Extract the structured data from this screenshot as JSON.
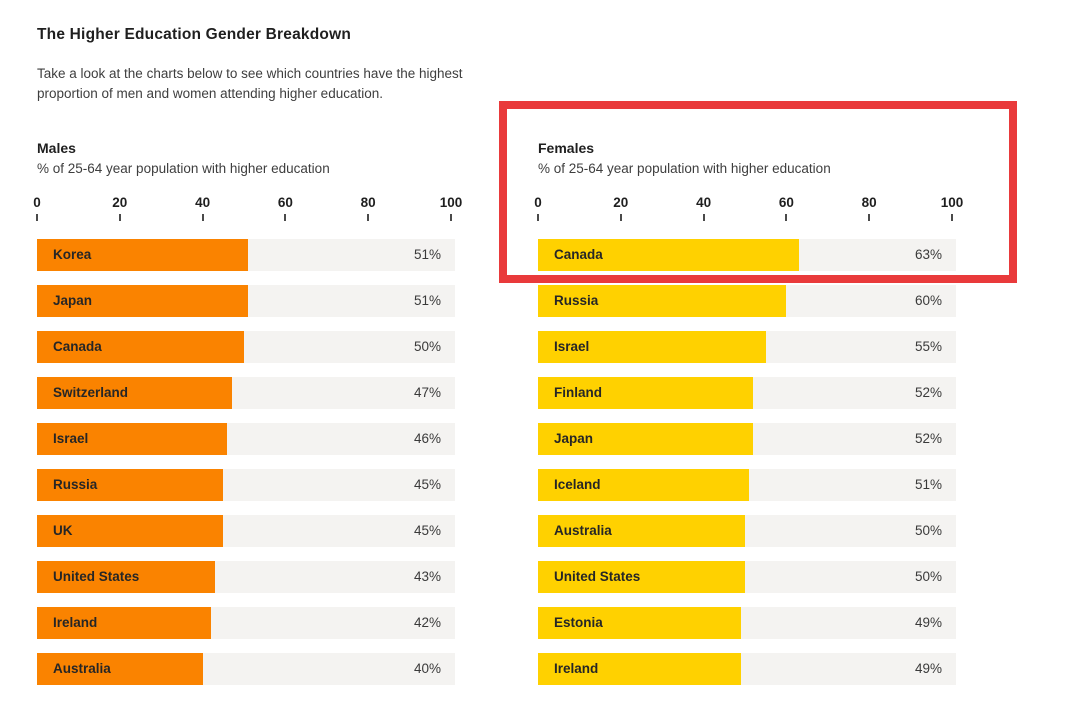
{
  "page": {
    "title": "The Higher Education Gender Breakdown",
    "subtitle_line1": "Take a look at the charts below to see which countries have the highest",
    "subtitle_line2": "proportion of men and women attending higher education."
  },
  "colors": {
    "male_bar": "#fa8300",
    "female_bar": "#ffd100",
    "bar_track": "#f4f3f1",
    "highlight_border": "#e93a3b",
    "heading_text": "#1f1f1f",
    "body_text": "#3e3e3e"
  },
  "chart_data": [
    {
      "id": "males",
      "type": "bar",
      "orientation": "horizontal",
      "title": "Males",
      "subtitle": "% of 25-64 year population with higher education",
      "xlim": [
        0,
        100
      ],
      "axis_ticks": [
        0,
        20,
        40,
        60,
        80,
        100
      ],
      "bar_color": "#fa8300",
      "categories": [
        "Korea",
        "Japan",
        "Canada",
        "Switzerland",
        "Israel",
        "Russia",
        "UK",
        "United States",
        "Ireland",
        "Australia"
      ],
      "values": [
        51,
        51,
        50,
        47,
        46,
        45,
        45,
        43,
        42,
        40
      ],
      "value_labels": [
        "51%",
        "51%",
        "50%",
        "47%",
        "46%",
        "45%",
        "45%",
        "43%",
        "42%",
        "40%"
      ]
    },
    {
      "id": "females",
      "type": "bar",
      "orientation": "horizontal",
      "title": "Females",
      "subtitle": "% of 25-64 year population with higher education",
      "xlim": [
        0,
        100
      ],
      "axis_ticks": [
        0,
        20,
        40,
        60,
        80,
        100
      ],
      "bar_color": "#ffd100",
      "categories": [
        "Canada",
        "Russia",
        "Israel",
        "Finland",
        "Japan",
        "Iceland",
        "Australia",
        "United States",
        "Estonia",
        "Ireland"
      ],
      "values": [
        63,
        60,
        55,
        52,
        52,
        51,
        50,
        50,
        49,
        49
      ],
      "value_labels": [
        "63%",
        "60%",
        "55%",
        "52%",
        "52%",
        "51%",
        "50%",
        "50%",
        "49%",
        "49%"
      ]
    }
  ],
  "annotation": {
    "type": "highlight-box",
    "target": "females-header-and-canada-row",
    "color": "#e93a3b"
  }
}
